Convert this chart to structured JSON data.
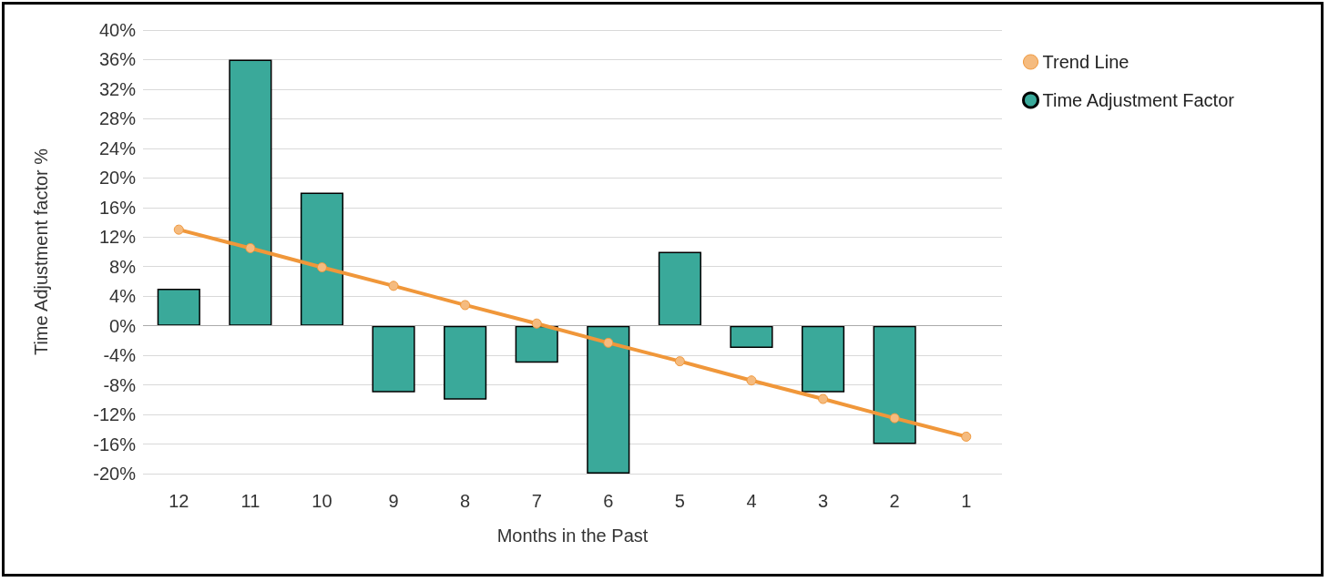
{
  "chart_data": {
    "type": "bar",
    "xlabel": "Months in the Past",
    "ylabel": "Time Adjustment factor %",
    "categories": [
      "12",
      "11",
      "10",
      "9",
      "8",
      "7",
      "6",
      "5",
      "4",
      "3",
      "2",
      "1"
    ],
    "series": [
      {
        "name": "Trend Line",
        "type": "line",
        "color": "#f0973a",
        "marker": "circle",
        "line_style": "solid",
        "values": [
          13,
          10.5,
          7.9,
          5.4,
          2.8,
          0.3,
          -2.3,
          -4.8,
          -7.4,
          -9.9,
          -12.5,
          -15
        ]
      },
      {
        "name": "Time Adjustment Factor",
        "color": "#3aa99a",
        "values": [
          5,
          36,
          18,
          -9,
          -10,
          -5,
          -20,
          10,
          -3,
          -9,
          -16,
          null
        ]
      }
    ],
    "ylim": [
      -20,
      40
    ],
    "yticks": [
      {
        "value": -20,
        "label": "-20%"
      },
      {
        "value": -16,
        "label": "-16%"
      },
      {
        "value": -12,
        "label": "-12%"
      },
      {
        "value": -8,
        "label": "-8%"
      },
      {
        "value": -4,
        "label": "-4%"
      },
      {
        "value": 0,
        "label": "0%"
      },
      {
        "value": 4,
        "label": "4%"
      },
      {
        "value": 8,
        "label": "8%"
      },
      {
        "value": 12,
        "label": "12%"
      },
      {
        "value": 16,
        "label": "16%"
      },
      {
        "value": 20,
        "label": "20%"
      },
      {
        "value": 24,
        "label": "24%"
      },
      {
        "value": 28,
        "label": "28%"
      },
      {
        "value": 32,
        "label": "32%"
      },
      {
        "value": 36,
        "label": "36%"
      },
      {
        "value": 40,
        "label": "40%"
      }
    ],
    "grid": "y",
    "legend": "top right"
  }
}
